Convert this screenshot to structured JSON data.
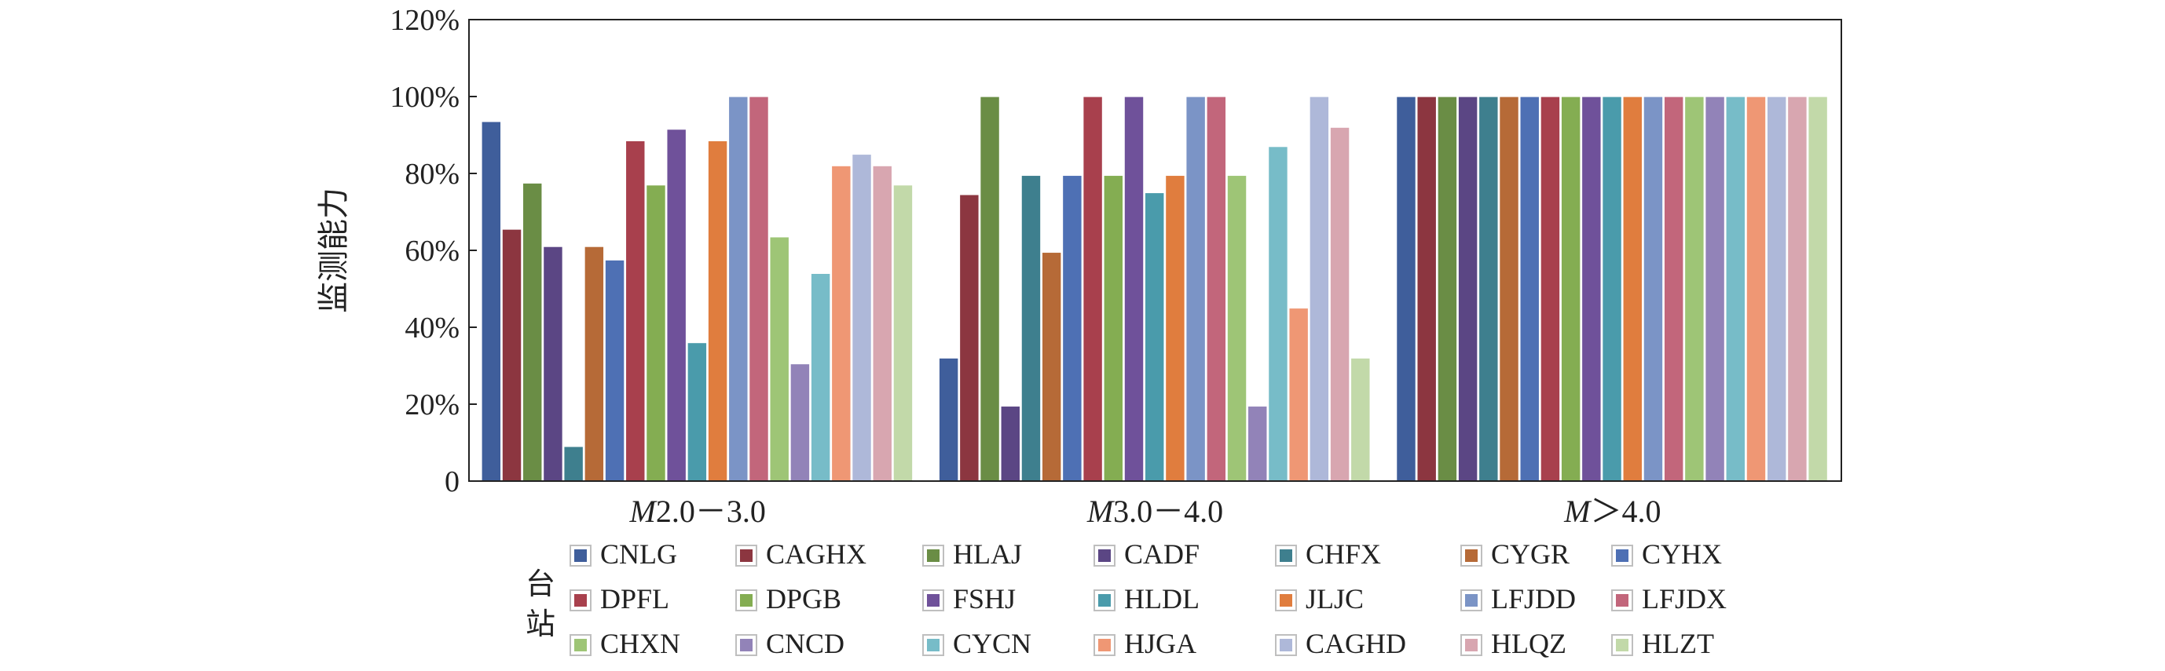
{
  "chart_data": {
    "type": "bar",
    "ylabel": "监测能力",
    "ylim": [
      0,
      1.2
    ],
    "yticks": [
      {
        "value": 0,
        "label": "0"
      },
      {
        "value": 0.2,
        "label": "20%"
      },
      {
        "value": 0.4,
        "label": "40%"
      },
      {
        "value": 0.6,
        "label": "60%"
      },
      {
        "value": 0.8,
        "label": "80%"
      },
      {
        "value": 1.0,
        "label": "100%"
      },
      {
        "value": 1.2,
        "label": "120%"
      }
    ],
    "categories": [
      {
        "italic": "M",
        "rest": "2.0－3.0"
      },
      {
        "italic": "M",
        "rest": "3.0－4.0"
      },
      {
        "italic": "M",
        "rest": "＞4.0"
      }
    ],
    "legend_title": "台站",
    "series": [
      {
        "name": "CNLG",
        "color": "#3f5e9b",
        "values": [
          0.935,
          0.32,
          1.0
        ]
      },
      {
        "name": "CAGHX",
        "color": "#8c3640",
        "values": [
          0.655,
          0.745,
          1.0
        ]
      },
      {
        "name": "HLAJ",
        "color": "#6a8d45",
        "values": [
          0.775,
          1.0,
          1.0
        ]
      },
      {
        "name": "CADF",
        "color": "#5b4684",
        "values": [
          0.61,
          0.195,
          1.0
        ]
      },
      {
        "name": "CHFX",
        "color": "#3e7f8e",
        "values": [
          0.09,
          0.795,
          1.0
        ]
      },
      {
        "name": "CYGR",
        "color": "#b66a37",
        "values": [
          0.61,
          0.595,
          1.0
        ]
      },
      {
        "name": "CYHX",
        "color": "#4e70b4",
        "values": [
          0.575,
          0.795,
          1.0
        ]
      },
      {
        "name": "DPFL",
        "color": "#a8404d",
        "values": [
          0.885,
          1.0,
          1.0
        ]
      },
      {
        "name": "DPGB",
        "color": "#84ad52",
        "values": [
          0.77,
          0.795,
          1.0
        ]
      },
      {
        "name": "FSHJ",
        "color": "#6f519a",
        "values": [
          0.915,
          1.0,
          1.0
        ]
      },
      {
        "name": "HLDL",
        "color": "#4a9bab",
        "values": [
          0.36,
          0.75,
          1.0
        ]
      },
      {
        "name": "JLJC",
        "color": "#e07d3e",
        "values": [
          0.885,
          0.795,
          1.0
        ]
      },
      {
        "name": "LFJDD",
        "color": "#7b94c6",
        "values": [
          1.0,
          1.0,
          1.0
        ]
      },
      {
        "name": "LFJDX",
        "color": "#c2667b",
        "values": [
          1.0,
          1.0,
          1.0
        ]
      },
      {
        "name": "CHXN",
        "color": "#9ec576",
        "values": [
          0.635,
          0.795,
          1.0
        ]
      },
      {
        "name": "CNCD",
        "color": "#9283b8",
        "values": [
          0.305,
          0.195,
          1.0
        ]
      },
      {
        "name": "CYCN",
        "color": "#77bcc8",
        "values": [
          0.54,
          0.87,
          1.0
        ]
      },
      {
        "name": "HJGA",
        "color": "#ef9774",
        "values": [
          0.82,
          0.45,
          1.0
        ]
      },
      {
        "name": "CAGHD",
        "color": "#aeb8d9",
        "values": [
          0.85,
          1.0,
          1.0
        ]
      },
      {
        "name": "HLQZ",
        "color": "#d8a6b0",
        "values": [
          0.82,
          0.92,
          1.0
        ]
      },
      {
        "name": "HLZT",
        "color": "#c2d9a9",
        "values": [
          0.77,
          0.32,
          1.0
        ]
      }
    ],
    "grid": false,
    "legend_position": "bottom"
  }
}
